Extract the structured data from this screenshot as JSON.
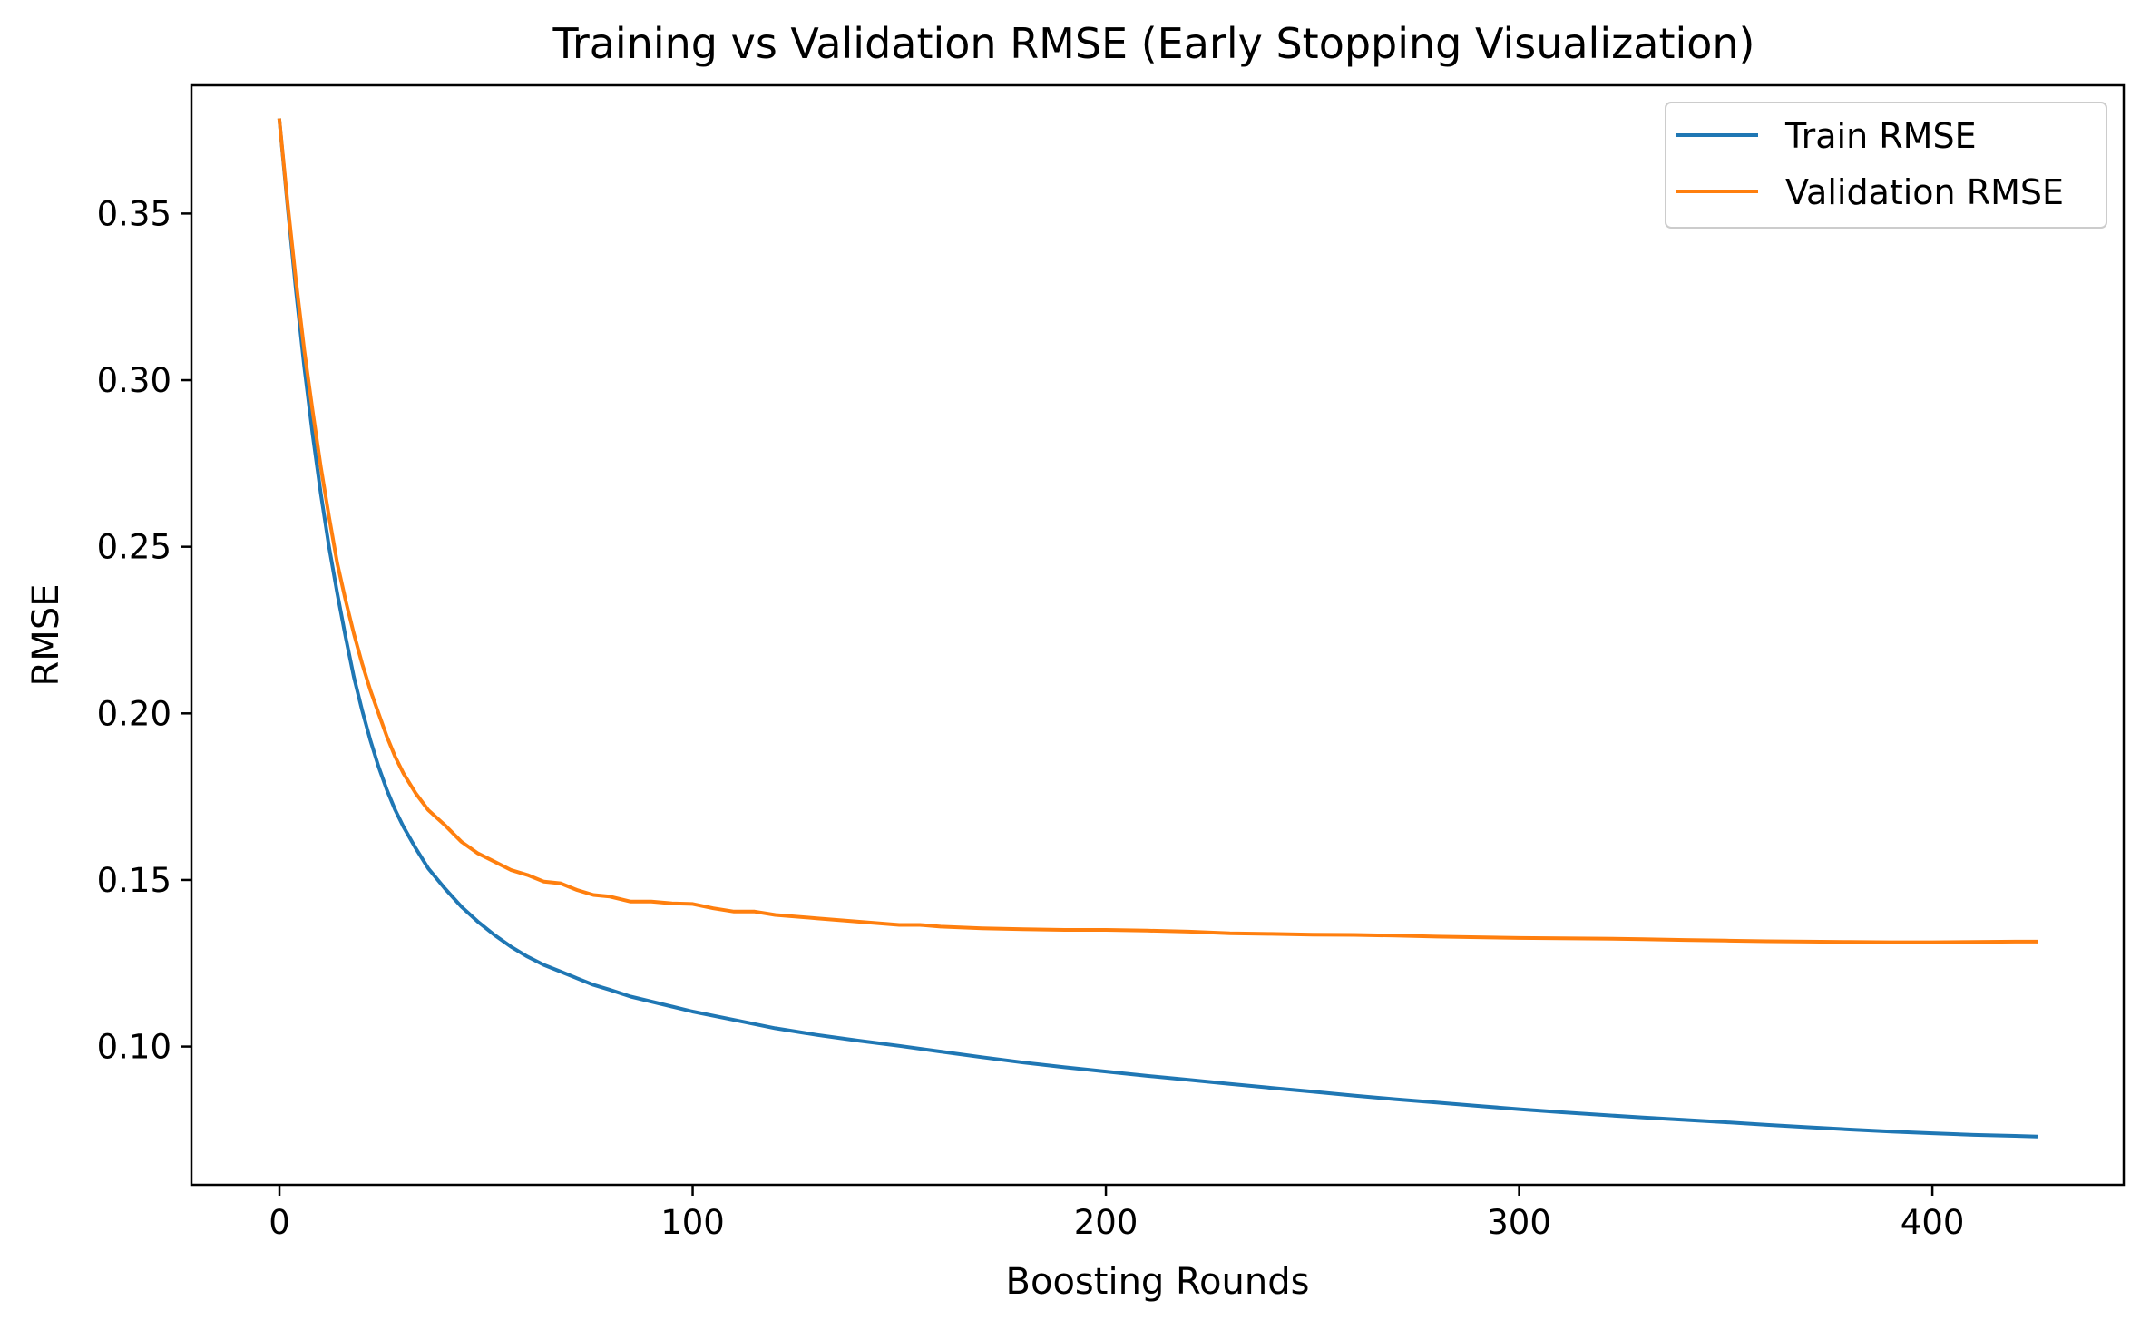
{
  "chart_data": {
    "type": "line",
    "title": "Training vs Validation RMSE (Early Stopping Visualization)",
    "xlabel": "Boosting Rounds",
    "ylabel": "RMSE",
    "xlim": [
      -21.3,
      446.3
    ],
    "ylim": [
      0.0585,
      0.3885
    ],
    "xticks": [
      0,
      100,
      200,
      300,
      400
    ],
    "xtick_labels": [
      "0",
      "100",
      "200",
      "300",
      "400"
    ],
    "yticks": [
      0.1,
      0.15,
      0.2,
      0.25,
      0.3,
      0.35
    ],
    "ytick_labels": [
      "0.10",
      "0.15",
      "0.20",
      "0.25",
      "0.30",
      "0.35"
    ],
    "grid": false,
    "legend_position": "upper right",
    "series": [
      {
        "name": "Train RMSE",
        "color": "#1f77b4",
        "x": [
          0,
          2,
          4,
          6,
          8,
          10,
          12,
          14,
          16,
          18,
          20,
          22,
          24,
          26,
          28,
          30,
          33,
          36,
          40,
          44,
          48,
          52,
          56,
          60,
          64,
          68,
          72,
          76,
          80,
          85,
          90,
          95,
          100,
          110,
          120,
          130,
          140,
          150,
          160,
          170,
          180,
          190,
          200,
          210,
          220,
          230,
          240,
          250,
          260,
          270,
          280,
          290,
          300,
          310,
          320,
          330,
          340,
          350,
          360,
          370,
          380,
          390,
          400,
          410,
          420,
          425
        ],
        "y": [
          0.378,
          0.352,
          0.327,
          0.304,
          0.284,
          0.266,
          0.25,
          0.236,
          0.223,
          0.211,
          0.201,
          0.192,
          0.184,
          0.177,
          0.171,
          0.166,
          0.1595,
          0.1535,
          0.1475,
          0.142,
          0.1375,
          0.1335,
          0.13,
          0.127,
          0.1245,
          0.1225,
          0.1205,
          0.1185,
          0.117,
          0.115,
          0.1135,
          0.112,
          0.1105,
          0.108,
          0.1055,
          0.1035,
          0.1018,
          0.1002,
          0.0985,
          0.0968,
          0.0952,
          0.0938,
          0.0925,
          0.0912,
          0.09,
          0.0888,
          0.0876,
          0.0865,
          0.0853,
          0.0842,
          0.0832,
          0.0822,
          0.0812,
          0.0803,
          0.0795,
          0.0787,
          0.078,
          0.0773,
          0.0765,
          0.0758,
          0.0751,
          0.0745,
          0.074,
          0.0735,
          0.0732,
          0.073
        ]
      },
      {
        "name": "Validation RMSE",
        "color": "#ff7f0e",
        "x": [
          0,
          2,
          4,
          6,
          8,
          10,
          12,
          14,
          16,
          18,
          20,
          22,
          24,
          26,
          28,
          30,
          33,
          36,
          40,
          44,
          48,
          52,
          56,
          60,
          64,
          68,
          72,
          76,
          80,
          85,
          90,
          95,
          100,
          105,
          110,
          115,
          120,
          130,
          140,
          150,
          155,
          160,
          170,
          180,
          190,
          200,
          210,
          220,
          230,
          240,
          250,
          260,
          270,
          280,
          290,
          300,
          310,
          320,
          330,
          340,
          350,
          360,
          370,
          380,
          390,
          400,
          410,
          420,
          425
        ],
        "y": [
          0.378,
          0.353,
          0.33,
          0.309,
          0.291,
          0.274,
          0.259,
          0.245,
          0.234,
          0.224,
          0.215,
          0.207,
          0.2,
          0.193,
          0.187,
          0.182,
          0.176,
          0.171,
          0.1665,
          0.1615,
          0.158,
          0.1555,
          0.153,
          0.1515,
          0.1495,
          0.149,
          0.147,
          0.1455,
          0.145,
          0.1435,
          0.1435,
          0.143,
          0.1428,
          0.1415,
          0.1405,
          0.1405,
          0.1395,
          0.1385,
          0.1375,
          0.1365,
          0.1365,
          0.136,
          0.1355,
          0.1352,
          0.135,
          0.135,
          0.1348,
          0.1345,
          0.134,
          0.1338,
          0.1336,
          0.1335,
          0.1333,
          0.133,
          0.1328,
          0.1326,
          0.1325,
          0.1324,
          0.1322,
          0.132,
          0.1318,
          0.1316,
          0.1315,
          0.1314,
          0.1313,
          0.1313,
          0.1314,
          0.1315,
          0.1315
        ]
      }
    ]
  }
}
